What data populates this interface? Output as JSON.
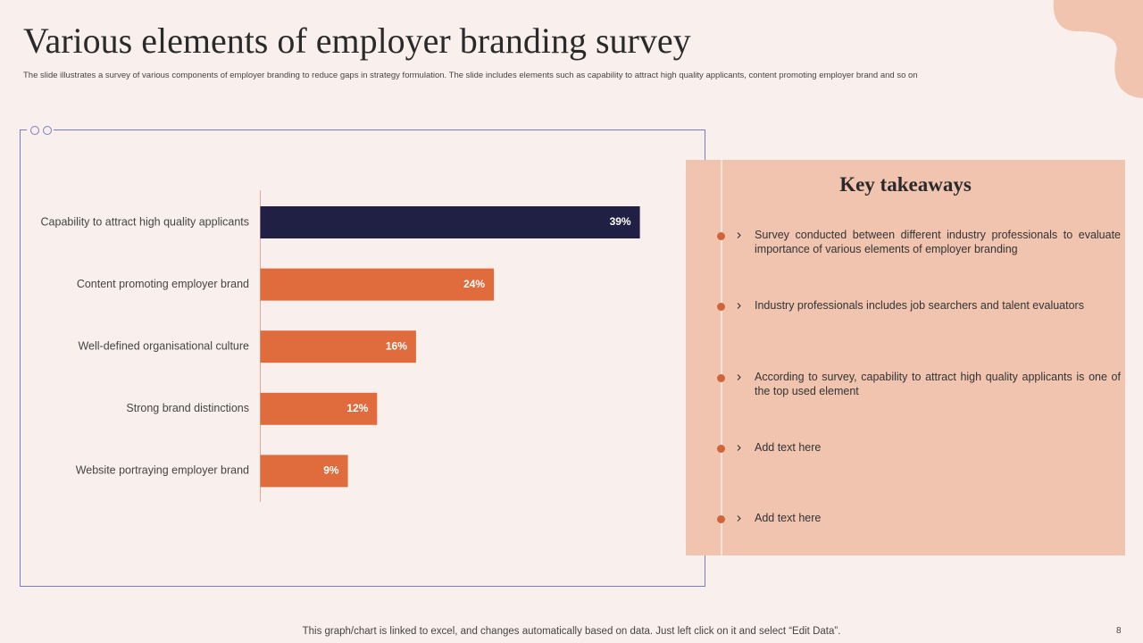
{
  "title": "Various elements of employer branding survey",
  "description": "The slide illustrates a survey of various components of employer branding to reduce gaps in strategy formulation. The slide includes elements such as capability to attract high quality applicants, content promoting employer brand and so on",
  "chart_data": {
    "type": "bar",
    "orientation": "horizontal",
    "categories": [
      "Capability to attract high quality applicants",
      "Content promoting employer brand",
      "Well-defined organisational culture",
      "Strong brand distinctions",
      "Website portraying employer brand"
    ],
    "values": [
      39,
      24,
      16,
      12,
      9
    ],
    "value_labels": [
      "39%",
      "24%",
      "16%",
      "12%",
      "9%"
    ],
    "colors": [
      "#1f2044",
      "#e06c3e",
      "#e06c3e",
      "#e06c3e",
      "#e06c3e"
    ]
  },
  "takeaways": {
    "heading": "Key takeaways",
    "items": [
      "Survey conducted between different industry professionals to evaluate importance of various elements of employer branding",
      "Industry professionals includes job searchers and talent evaluators",
      "According to survey, capability to attract high quality applicants is one of the top used element",
      "Add text here",
      "Add text here"
    ]
  },
  "footer": "This graph/chart is linked to excel, and changes automatically based on data. Just left click on it and select “Edit Data”.",
  "page_number": 8
}
